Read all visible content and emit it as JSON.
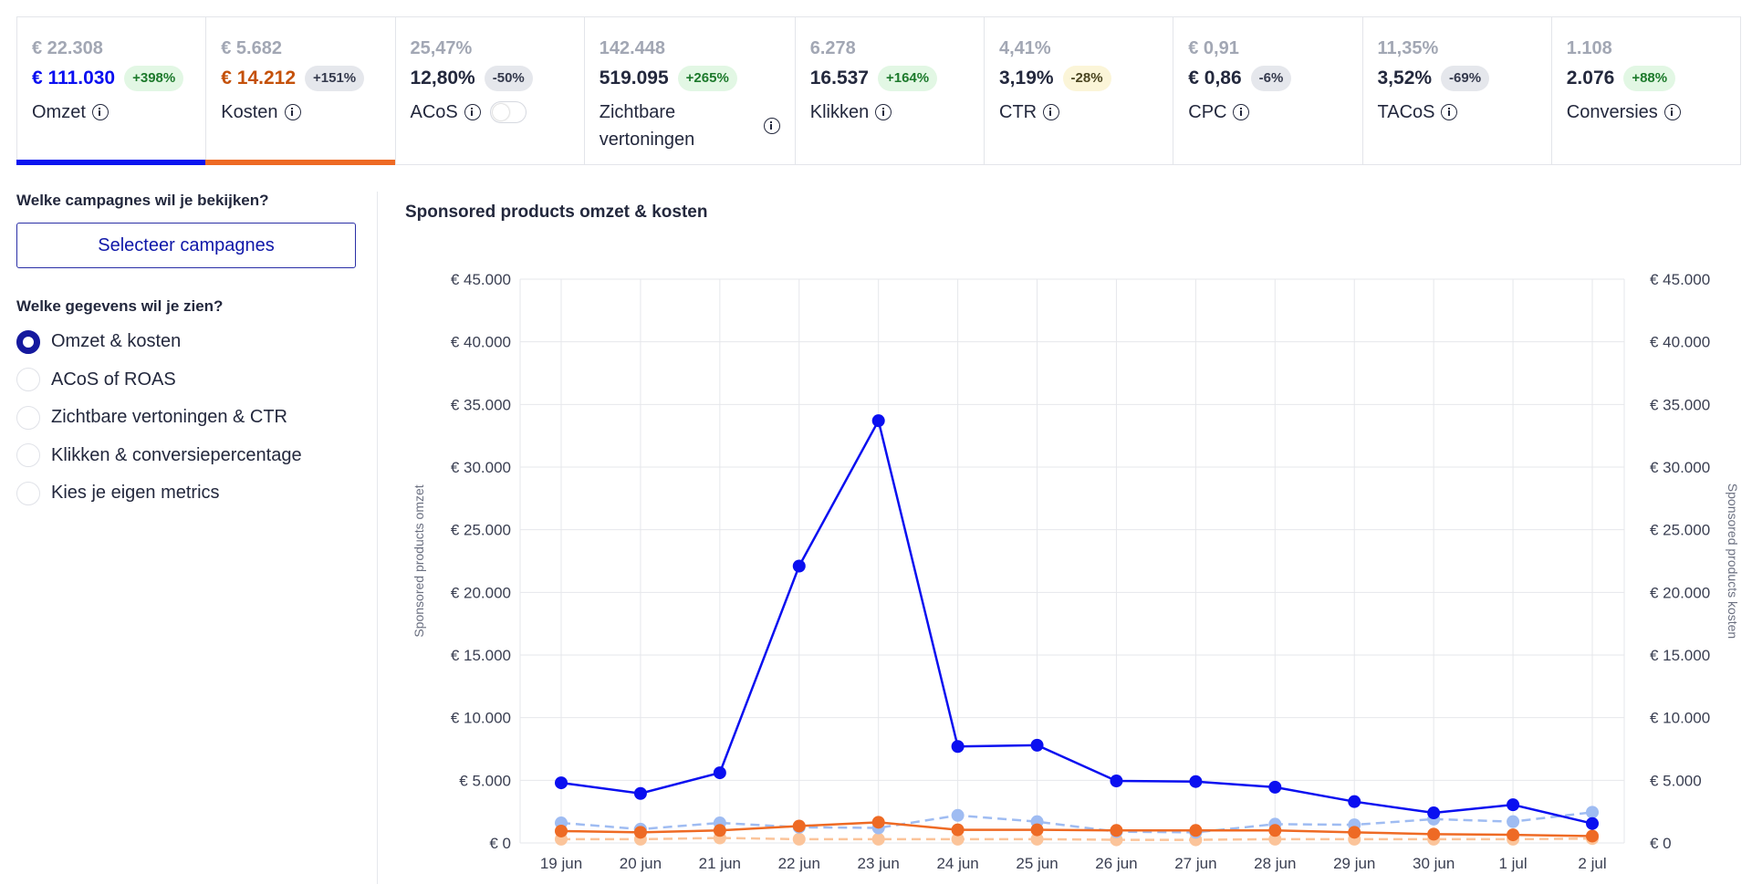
{
  "kpis": [
    {
      "key": "omzet",
      "prev": "€ 22.308",
      "current": "€ 111.030",
      "change": "+398%",
      "change_tone": "green",
      "label": "Omzet",
      "current_color": "#0a0ff0",
      "underline_color": "#0a14f0"
    },
    {
      "key": "kosten",
      "prev": "€ 5.682",
      "current": "€ 14.212",
      "change": "+151%",
      "change_tone": "gray",
      "label": "Kosten",
      "current_color": "#c4510a",
      "underline_color": "#ee6a24"
    },
    {
      "key": "acos",
      "prev": "25,47%",
      "current": "12,80%",
      "change": "-50%",
      "change_tone": "gray",
      "label": "ACoS",
      "toggle": true
    },
    {
      "key": "zichtbare-vertoningen",
      "prev": "142.448",
      "current": "519.095",
      "change": "+265%",
      "change_tone": "green",
      "label": "Zichtbare vertoningen"
    },
    {
      "key": "klikken",
      "prev": "6.278",
      "current": "16.537",
      "change": "+164%",
      "change_tone": "green",
      "label": "Klikken"
    },
    {
      "key": "ctr",
      "prev": "4,41%",
      "current": "3,19%",
      "change": "-28%",
      "change_tone": "yellow",
      "label": "CTR"
    },
    {
      "key": "cpc",
      "prev": "€ 0,91",
      "current": "€ 0,86",
      "change": "-6%",
      "change_tone": "gray",
      "label": "CPC"
    },
    {
      "key": "tacos",
      "prev": "11,35%",
      "current": "3,52%",
      "change": "-69%",
      "change_tone": "gray",
      "label": "TACoS"
    },
    {
      "key": "conversies",
      "prev": "1.108",
      "current": "2.076",
      "change": "+88%",
      "change_tone": "green",
      "label": "Conversies"
    }
  ],
  "sidebar": {
    "campaign_question": "Welke campagnes wil je bekijken?",
    "select_button": "Selecteer campagnes",
    "data_question": "Welke gegevens wil je zien?",
    "options": [
      {
        "label": "Omzet & kosten",
        "selected": true
      },
      {
        "label": "ACoS of ROAS",
        "selected": false
      },
      {
        "label": "Zichtbare vertoningen & CTR",
        "selected": false
      },
      {
        "label": "Klikken & conversiepercentage",
        "selected": false
      },
      {
        "label": "Kies je eigen metrics",
        "selected": false
      }
    ]
  },
  "chart_title": "Sponsored products omzet & kosten",
  "chart_data": {
    "type": "line",
    "title": "Sponsored products omzet & kosten",
    "ylabel": "Sponsored products omzet",
    "ylabel_right": "Sponsored products kosten",
    "ylim": [
      0,
      45000
    ],
    "yticks": [
      0,
      5000,
      10000,
      15000,
      20000,
      25000,
      30000,
      35000,
      40000,
      45000
    ],
    "ytick_labels": [
      "€ 0",
      "€ 5.000",
      "€ 10.000",
      "€ 15.000",
      "€ 20.000",
      "€ 25.000",
      "€ 30.000",
      "€ 35.000",
      "€ 40.000",
      "€ 45.000"
    ],
    "categories": [
      "19 jun",
      "20 jun",
      "21 jun",
      "22 jun",
      "23 jun",
      "24 jun",
      "25 jun",
      "26 jun",
      "27 jun",
      "28 jun",
      "29 jun",
      "30 jun",
      "1 jul",
      "2 jul"
    ],
    "grid": true,
    "series": [
      {
        "values": [
          4800,
          3950,
          5600,
          22100,
          33700,
          7700,
          7800,
          4950,
          4900,
          4450,
          3300,
          2400,
          3050,
          1550
        ],
        "color": "#0a0ff0",
        "dashed": false
      },
      {
        "values": [
          950,
          850,
          1000,
          1350,
          1650,
          1050,
          1050,
          1000,
          1000,
          1000,
          850,
          700,
          650,
          550
        ],
        "color": "#ee6a24",
        "dashed": false
      },
      {
        "values": [
          1600,
          1100,
          1600,
          1250,
          1200,
          2200,
          1700,
          900,
          850,
          1500,
          1450,
          1900,
          1700,
          2450
        ],
        "color": "#9fbcf2",
        "dashed": true
      },
      {
        "values": [
          300,
          300,
          400,
          300,
          300,
          300,
          300,
          250,
          250,
          300,
          300,
          300,
          300,
          350
        ],
        "color": "#fbc49a",
        "dashed": true
      }
    ]
  }
}
